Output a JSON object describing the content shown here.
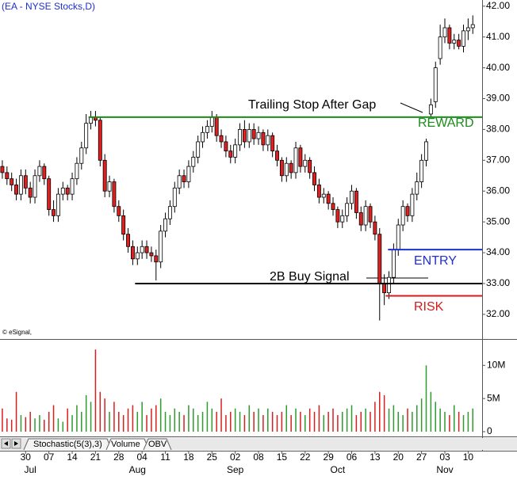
{
  "chart_data": {
    "type": "candlestick",
    "title": "(EA - NYSE Stocks,D)",
    "credit": "© eSignal,",
    "xlim": [
      -0.5,
      103
    ],
    "ylim": [
      31.2,
      42.2
    ],
    "yticks": [
      {
        "value": 32,
        "label": "32.00"
      },
      {
        "value": 33,
        "label": "33.00"
      },
      {
        "value": 34,
        "label": "34.00"
      },
      {
        "value": 35,
        "label": "35.00"
      },
      {
        "value": 36,
        "label": "36.00"
      },
      {
        "value": 37,
        "label": "37.00"
      },
      {
        "value": 38,
        "label": "38.00"
      },
      {
        "value": 39,
        "label": "39.00"
      },
      {
        "value": 40,
        "label": "40.00"
      },
      {
        "value": 41,
        "label": "41.00"
      },
      {
        "value": 42,
        "label": "42.00"
      }
    ],
    "xticks": [
      {
        "value": 5,
        "label": "30"
      },
      {
        "value": 10,
        "label": "07"
      },
      {
        "value": 15,
        "label": "14"
      },
      {
        "value": 20,
        "label": "21"
      },
      {
        "value": 25,
        "label": "28"
      },
      {
        "value": 30,
        "label": "04"
      },
      {
        "value": 35,
        "label": "11"
      },
      {
        "value": 40,
        "label": "18"
      },
      {
        "value": 45,
        "label": "25"
      },
      {
        "value": 50,
        "label": "02"
      },
      {
        "value": 55,
        "label": "08"
      },
      {
        "value": 60,
        "label": "15"
      },
      {
        "value": 65,
        "label": "22"
      },
      {
        "value": 70,
        "label": "29"
      },
      {
        "value": 75,
        "label": "06"
      },
      {
        "value": 80,
        "label": "13"
      },
      {
        "value": 85,
        "label": "20"
      },
      {
        "value": 90,
        "label": "27"
      },
      {
        "value": 95,
        "label": "03"
      },
      {
        "value": 100,
        "label": "10"
      }
    ],
    "month_ticks": [
      {
        "value": 6,
        "label": "Jul"
      },
      {
        "value": 29,
        "label": "Aug"
      },
      {
        "value": 50,
        "label": "Sep"
      },
      {
        "value": 72,
        "label": "Oct"
      },
      {
        "value": 95,
        "label": "Nov"
      }
    ],
    "up_color": "#ffffff",
    "down_color": "#e02020",
    "open": [
      36.8,
      36.6,
      36.4,
      36.2,
      35.9,
      36.5,
      36.1,
      35.8,
      36.5,
      36.8,
      36.4,
      35.4,
      35.2,
      35.9,
      36.1,
      35.9,
      36.4,
      36.9,
      37.4,
      38.2,
      38.4,
      38.3,
      37.0,
      36.0,
      36.3,
      35.5,
      35.2,
      34.6,
      34.2,
      33.8,
      34.0,
      34.2,
      34.0,
      33.9,
      33.7,
      34.7,
      35.1,
      35.5,
      36.1,
      36.5,
      36.3,
      36.8,
      37.1,
      37.6,
      37.9,
      38.1,
      38.4,
      37.8,
      37.6,
      37.3,
      37.1,
      37.5,
      38.0,
      37.6,
      38.0,
      37.7,
      37.9,
      37.5,
      37.8,
      37.3,
      37.0,
      36.5,
      36.9,
      36.6,
      37.4,
      36.8,
      37.0,
      36.6,
      36.2,
      35.8,
      35.9,
      35.6,
      35.4,
      35.0,
      35.2,
      35.6,
      36.0,
      35.3,
      34.9,
      35.5,
      35.0,
      34.6,
      33.0,
      32.7,
      33.2,
      34.1,
      34.9,
      35.5,
      35.2,
      35.9,
      36.3,
      37.0,
      38.5,
      38.9,
      40.3,
      41.0,
      41.3,
      40.8,
      40.9,
      40.7,
      41.2,
      41.3
    ],
    "high": [
      37.0,
      36.8,
      36.6,
      36.4,
      36.7,
      36.7,
      36.3,
      36.7,
      37.0,
      36.9,
      36.5,
      35.7,
      36.1,
      36.3,
      36.2,
      36.6,
      37.1,
      37.6,
      38.5,
      38.6,
      38.6,
      38.4,
      37.2,
      36.5,
      36.4,
      35.7,
      35.4,
      34.8,
      34.4,
      34.2,
      34.4,
      34.4,
      34.2,
      34.1,
      34.9,
      35.3,
      35.7,
      36.3,
      36.7,
      36.7,
      37.0,
      37.3,
      37.8,
      38.1,
      38.3,
      38.6,
      38.5,
      38.0,
      37.8,
      37.5,
      37.7,
      38.2,
      38.3,
      38.2,
      38.2,
      38.1,
      38.0,
      38.0,
      37.9,
      37.5,
      37.1,
      37.1,
      37.0,
      37.6,
      37.5,
      37.2,
      37.1,
      36.8,
      36.4,
      36.1,
      36.0,
      35.8,
      35.5,
      35.4,
      35.8,
      36.2,
      36.1,
      35.5,
      35.7,
      35.6,
      35.2,
      34.8,
      33.3,
      33.4,
      34.3,
      35.1,
      35.7,
      35.6,
      36.1,
      36.6,
      37.2,
      37.7,
      39.0,
      40.2,
      41.4,
      41.6,
      41.4,
      41.1,
      41.1,
      41.4,
      41.6,
      41.7
    ],
    "low": [
      36.4,
      36.2,
      36.0,
      35.7,
      35.7,
      35.9,
      35.6,
      35.6,
      36.3,
      36.2,
      35.2,
      35.0,
      35.0,
      35.7,
      35.7,
      35.7,
      36.2,
      36.7,
      37.2,
      38.0,
      38.1,
      36.8,
      35.8,
      35.8,
      35.3,
      35.0,
      34.4,
      34.0,
      33.6,
      33.6,
      33.8,
      33.8,
      33.7,
      33.1,
      33.5,
      34.5,
      34.9,
      35.3,
      35.9,
      36.1,
      36.1,
      36.6,
      36.9,
      37.4,
      37.7,
      37.9,
      37.6,
      37.4,
      37.1,
      36.9,
      36.9,
      37.3,
      37.4,
      37.4,
      37.5,
      37.5,
      37.3,
      37.3,
      37.1,
      36.8,
      36.3,
      36.3,
      36.4,
      36.4,
      36.6,
      36.6,
      36.4,
      36.0,
      35.6,
      35.6,
      35.4,
      35.2,
      34.8,
      34.8,
      35.0,
      35.4,
      35.1,
      34.7,
      34.7,
      34.8,
      34.4,
      31.8,
      32.3,
      32.5,
      33.0,
      33.9,
      34.7,
      35.0,
      35.0,
      35.7,
      36.1,
      36.8,
      38.4,
      38.7,
      40.1,
      40.8,
      40.6,
      40.6,
      40.6,
      40.5,
      40.9,
      41.1
    ],
    "close": [
      36.6,
      36.4,
      36.2,
      35.9,
      36.5,
      36.1,
      35.8,
      36.5,
      36.8,
      36.4,
      35.4,
      35.2,
      35.9,
      36.1,
      35.9,
      36.4,
      36.9,
      37.4,
      38.2,
      38.4,
      38.3,
      37.0,
      36.0,
      36.3,
      35.5,
      35.2,
      34.6,
      34.2,
      33.8,
      34.0,
      34.2,
      34.0,
      33.9,
      33.7,
      34.7,
      35.1,
      35.5,
      36.1,
      36.5,
      36.3,
      36.8,
      37.1,
      37.6,
      37.9,
      38.1,
      38.4,
      37.8,
      37.6,
      37.3,
      37.1,
      37.5,
      38.0,
      37.6,
      38.0,
      37.7,
      37.9,
      37.5,
      37.8,
      37.3,
      37.0,
      36.5,
      36.9,
      36.6,
      37.4,
      36.8,
      37.0,
      36.6,
      36.2,
      35.8,
      35.9,
      35.6,
      35.4,
      35.0,
      35.2,
      35.6,
      36.0,
      35.3,
      34.9,
      35.5,
      35.0,
      34.6,
      33.0,
      32.7,
      33.2,
      34.1,
      34.9,
      35.5,
      35.2,
      35.9,
      36.3,
      37.0,
      37.6,
      38.8,
      40.0,
      41.0,
      41.3,
      40.8,
      40.9,
      40.7,
      41.2,
      41.3,
      41.4
    ],
    "volume": {
      "ylim": [
        0,
        13.5
      ],
      "yticks": [
        0,
        {
          "value": 5,
          "label": "5M"
        },
        {
          "value": 10,
          "label": "10M"
        }
      ],
      "up_color": "#2e9b2e",
      "down_color": "#d62020",
      "values": [
        3.5,
        2.0,
        1.8,
        6.0,
        2.5,
        2.2,
        3.0,
        2.0,
        2.5,
        1.8,
        3.0,
        4.0,
        2.0,
        1.5,
        3.5,
        2.5,
        4.0,
        3.0,
        5.5,
        4.5,
        12.4,
        6.0,
        5.0,
        3.0,
        4.5,
        3.0,
        2.5,
        3.5,
        4.0,
        3.0,
        4.5,
        2.5,
        3.5,
        4.0,
        5.0,
        3.0,
        2.5,
        3.5,
        3.0,
        2.5,
        4.0,
        3.5,
        2.5,
        3.0,
        4.5,
        3.5,
        3.0,
        5.0,
        2.5,
        3.0,
        3.5,
        3.0,
        2.5,
        4.0,
        3.0,
        3.5,
        2.5,
        3.5,
        3.0,
        2.5,
        3.0,
        4.0,
        2.5,
        3.5,
        3.0,
        2.5,
        3.5,
        3.0,
        4.0,
        2.5,
        3.0,
        3.5,
        2.5,
        3.0,
        3.5,
        4.0,
        2.5,
        3.0,
        3.5,
        3.0,
        4.5,
        6.0,
        5.5,
        3.5,
        4.0,
        3.0,
        2.5,
        3.5,
        3.0,
        4.0,
        5.0,
        10.0,
        6.0,
        4.5,
        3.5,
        3.0,
        2.5,
        4.0,
        3.0,
        2.5,
        3.0,
        3.5
      ]
    },
    "levels": [
      {
        "name": "REWARD",
        "value": 38.4,
        "from": 18.5,
        "color": "#1a8c1a"
      },
      {
        "name": "ENTRY",
        "value": 34.1,
        "from": 82.8,
        "color": "#1f2fd0"
      },
      {
        "name": "RISK",
        "value": 32.6,
        "from": 82.3,
        "color": "#d41a1a"
      },
      {
        "value": 33.0,
        "from": 28.5,
        "color": "#000000"
      }
    ],
    "annotations": [
      "Trailing Stop After Gap",
      "2B Buy Signal"
    ],
    "tabs": [
      "Stochastic(5(3),3)",
      "Volume",
      "OBV"
    ]
  }
}
